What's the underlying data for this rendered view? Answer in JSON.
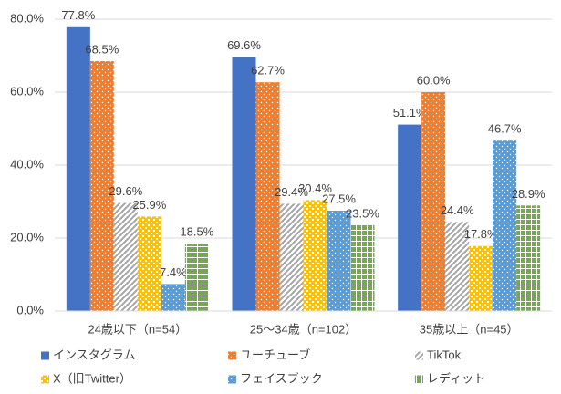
{
  "chart_data": {
    "type": "bar",
    "categories": [
      "24歳以下（n=54）",
      "25～34歳（n=102）",
      "35歳以上（n=45）"
    ],
    "series": [
      {
        "name": "インスタグラム",
        "color": "#4472c4",
        "pattern": "solid",
        "values": [
          77.8,
          69.6,
          51.1
        ],
        "value_labels": [
          "77.8%",
          "69.6%",
          "51.1%"
        ]
      },
      {
        "name": "ユーチューブ",
        "color": "#ed7d31",
        "pattern": "dots",
        "values": [
          68.5,
          62.7,
          60.0
        ],
        "value_labels": [
          "68.5%",
          "62.7%",
          "60.0%"
        ]
      },
      {
        "name": "TikTok",
        "color": "#a5a5a5",
        "pattern": "diagonal",
        "values": [
          29.6,
          29.4,
          24.4
        ],
        "value_labels": [
          "29.6%",
          "29.4%",
          "24.4%"
        ]
      },
      {
        "name": "X（旧Twitter）",
        "color": "#ffc000",
        "pattern": "checker",
        "values": [
          25.9,
          30.4,
          17.8
        ],
        "value_labels": [
          "25.9%",
          "30.4%",
          "17.8%"
        ]
      },
      {
        "name": "フェイスブック",
        "color": "#5b9bd5",
        "pattern": "dots",
        "values": [
          7.4,
          27.5,
          46.7
        ],
        "value_labels": [
          "7.4%",
          "27.5%",
          "46.7%"
        ]
      },
      {
        "name": "レディット",
        "color": "#70ad47",
        "pattern": "grid",
        "values": [
          18.5,
          23.5,
          28.9
        ],
        "value_labels": [
          "18.5%",
          "23.5%",
          "28.9%"
        ]
      }
    ],
    "ylim": [
      0,
      80
    ],
    "yticks": [
      {
        "value": 0,
        "label": "0.0%"
      },
      {
        "value": 20,
        "label": "20.0%"
      },
      {
        "value": 40,
        "label": "40.0%"
      },
      {
        "value": 60,
        "label": "60.0%"
      },
      {
        "value": 80,
        "label": "80.0%"
      }
    ],
    "grid": true
  }
}
